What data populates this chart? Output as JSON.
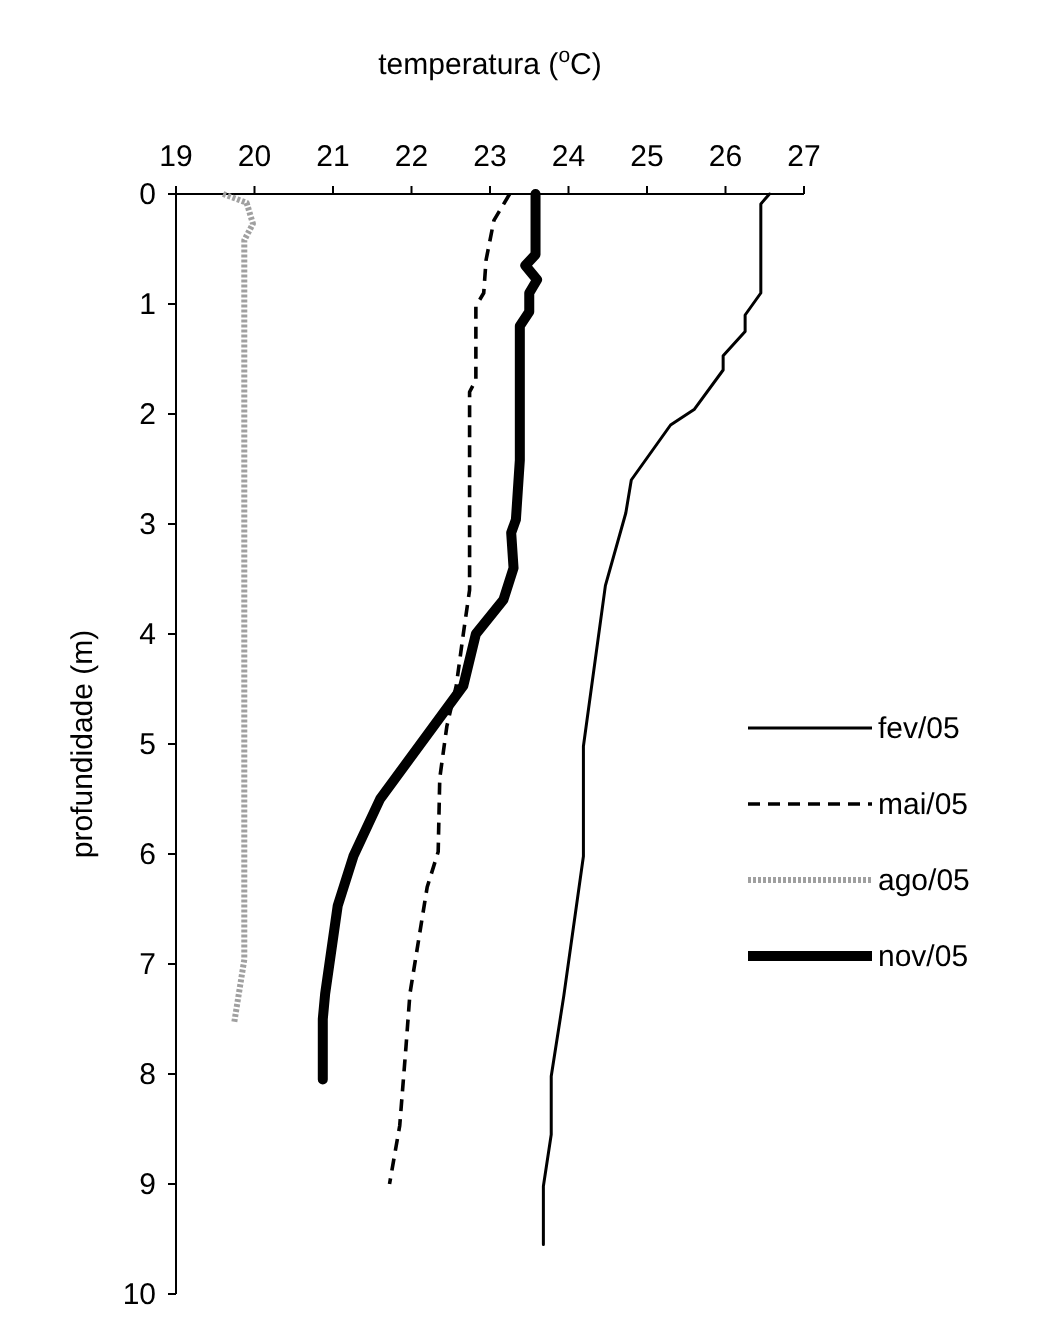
{
  "chart_data": {
    "type": "line",
    "xlabel": "temperatura ($^{o}$C)",
    "ylabel": "profundidade (m)",
    "xlim": [
      19,
      27
    ],
    "xticks": [
      19,
      20,
      21,
      22,
      23,
      24,
      25,
      26,
      27
    ],
    "ylim": [
      10,
      0
    ],
    "yticks": [
      0,
      1,
      2,
      3,
      4,
      5,
      6,
      7,
      8,
      9,
      10
    ],
    "legend": "right",
    "grid": false,
    "series": [
      {
        "name": "fev/05",
        "color": "#000000",
        "line_style": "solid",
        "x": [
          26.56,
          26.45,
          26.45,
          26.25,
          26.25,
          25.97,
          25.97,
          25.6,
          25.3,
          25.1,
          24.8,
          24.73,
          24.47,
          24.19,
          24.19,
          23.94,
          23.78,
          23.78,
          23.68,
          23.68
        ],
        "values": [
          0,
          0.09,
          0.9,
          1.1,
          1.25,
          1.47,
          1.6,
          1.96,
          2.1,
          2.3,
          2.6,
          2.9,
          3.56,
          5.02,
          6.02,
          7.29,
          8.02,
          8.55,
          9.02,
          9.55
        ]
      },
      {
        "name": "mai/05",
        "color": "#000000",
        "line_style": "dashed",
        "x": [
          23.25,
          23.05,
          22.95,
          22.92,
          22.82,
          22.82,
          22.74,
          22.74,
          22.66,
          22.57,
          22.45,
          22.36,
          22.34,
          22.2,
          21.98,
          21.93,
          21.85,
          21.72
        ],
        "values": [
          0,
          0.24,
          0.6,
          0.9,
          1.02,
          1.69,
          1.8,
          3.6,
          4.0,
          4.47,
          4.84,
          5.31,
          5.98,
          6.3,
          7.27,
          7.75,
          8.47,
          9.0
        ]
      },
      {
        "name": "ago/05",
        "color": "#a0a0a0",
        "line_style": "dotted",
        "x": [
          19.6,
          19.9,
          19.98,
          19.87,
          19.87,
          19.74
        ],
        "values": [
          0,
          0.08,
          0.27,
          0.42,
          6.96,
          7.54
        ]
      },
      {
        "name": "nov/05",
        "color": "#000000",
        "line_style": "solid",
        "x": [
          23.58,
          23.58,
          23.45,
          23.6,
          23.5,
          23.5,
          23.38,
          23.38,
          23.33,
          23.27,
          23.3,
          23.17,
          22.82,
          22.66,
          21.6,
          21.26,
          21.06,
          20.9,
          20.87,
          20.87
        ],
        "values": [
          0,
          0.55,
          0.65,
          0.78,
          0.9,
          1.07,
          1.2,
          2.42,
          2.96,
          3.08,
          3.4,
          3.69,
          4.0,
          4.47,
          5.5,
          6.02,
          6.47,
          7.27,
          7.5,
          8.05
        ]
      }
    ]
  }
}
